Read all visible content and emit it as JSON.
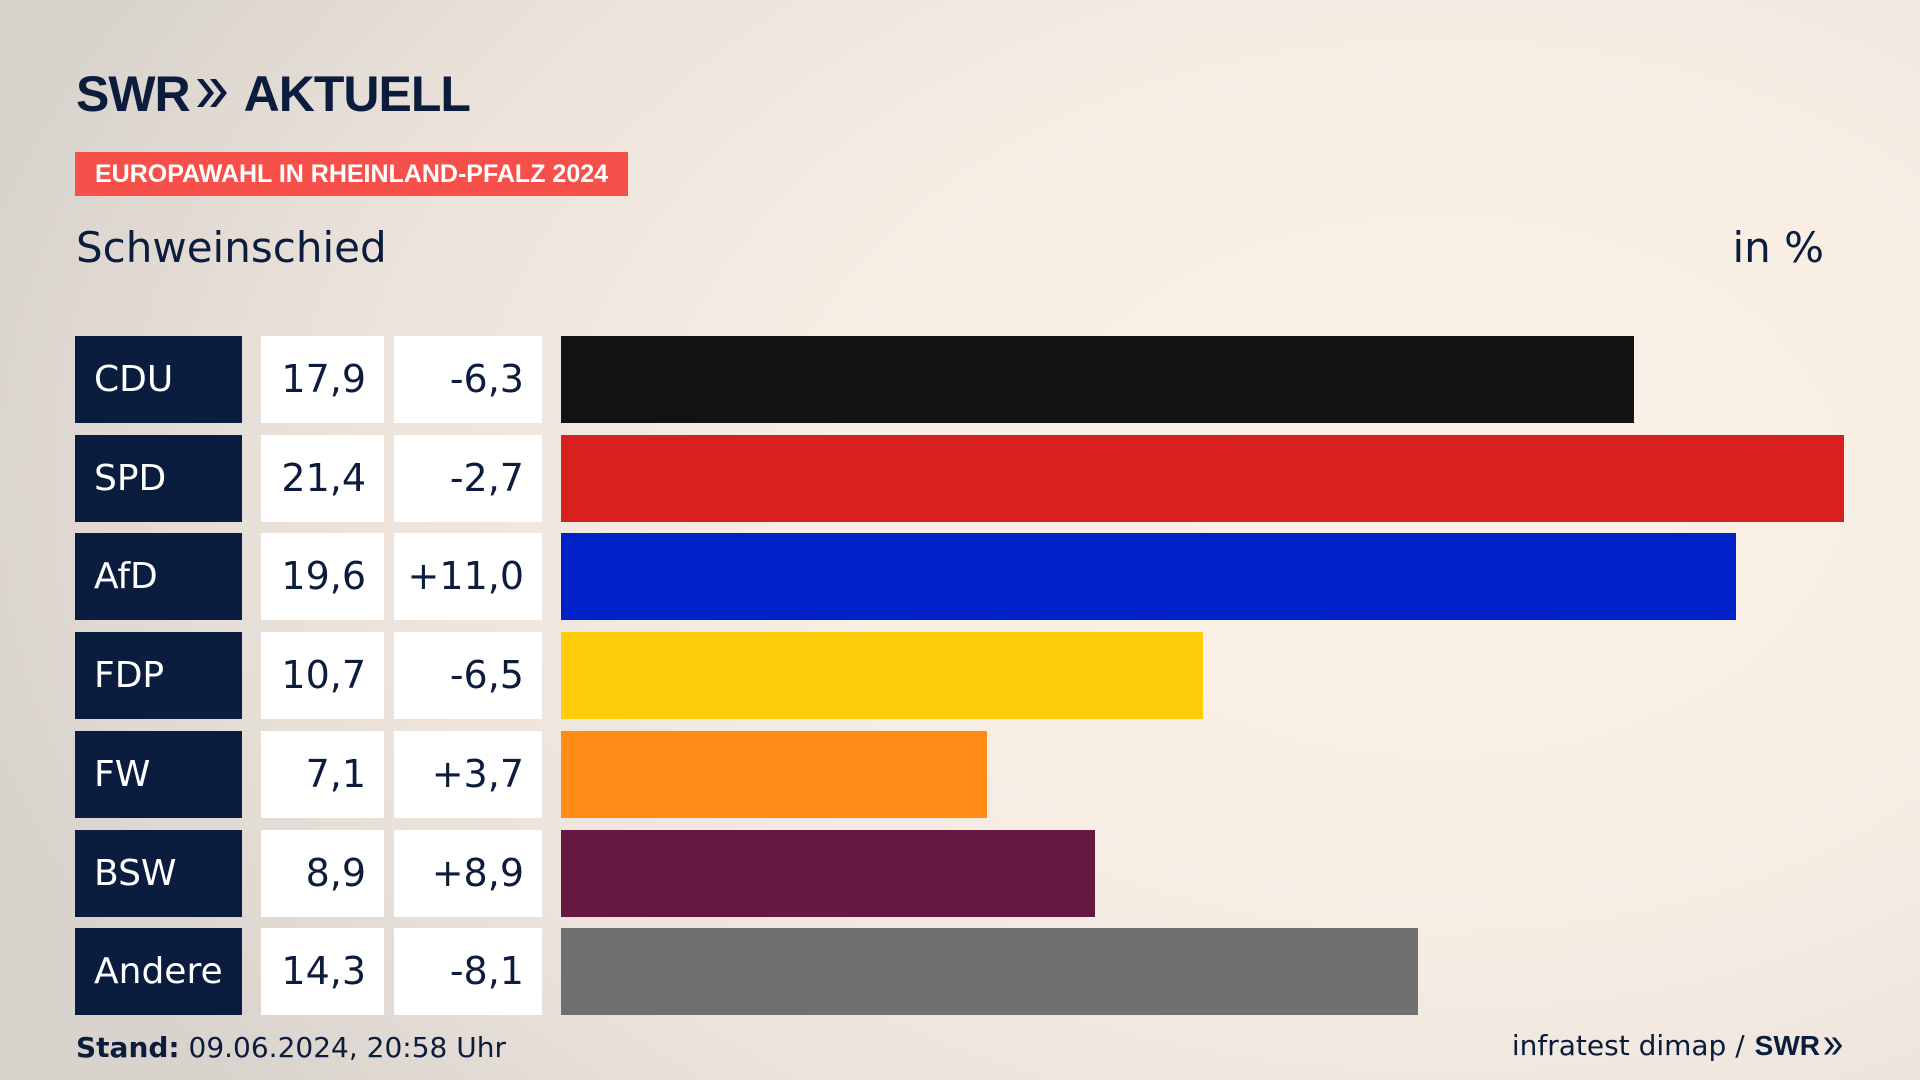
{
  "brand": {
    "logo_left": "SWR",
    "logo_right": "AKTUELL"
  },
  "tag": "EUROPAWAHL IN RHEINLAND-PFALZ 2024",
  "location": "Schweinschied",
  "unit": "in %",
  "footer": {
    "stand_label": "Stand:",
    "stand_value": " 09.06.2024, 20:58 Uhr",
    "source": "infratest dimap /",
    "source_brand": "SWR"
  },
  "colors": {
    "navy": "#0b1d3f",
    "tag_red": "#f5514a"
  },
  "chart_data": {
    "type": "bar",
    "orientation": "horizontal",
    "title": "Schweinschied",
    "unit": "in %",
    "xlim": [
      0,
      21.4
    ],
    "categories": [
      "CDU",
      "SPD",
      "AfD",
      "FDP",
      "FW",
      "BSW",
      "Andere"
    ],
    "values": [
      17.9,
      21.4,
      19.6,
      10.7,
      7.1,
      8.9,
      14.3
    ],
    "value_labels": [
      "17,9",
      "21,4",
      "19,6",
      "10,7",
      "7,1",
      "8,9",
      "14,3"
    ],
    "diff_labels": [
      "-6,3",
      "-2,7",
      "+11,0",
      "-6,5",
      "+3,7",
      "+8,9",
      "-8,1"
    ],
    "bar_colors": [
      "#131313",
      "#d8201f",
      "#0022c8",
      "#ffcc0a",
      "#ff8c16",
      "#661841",
      "#707073"
    ]
  }
}
